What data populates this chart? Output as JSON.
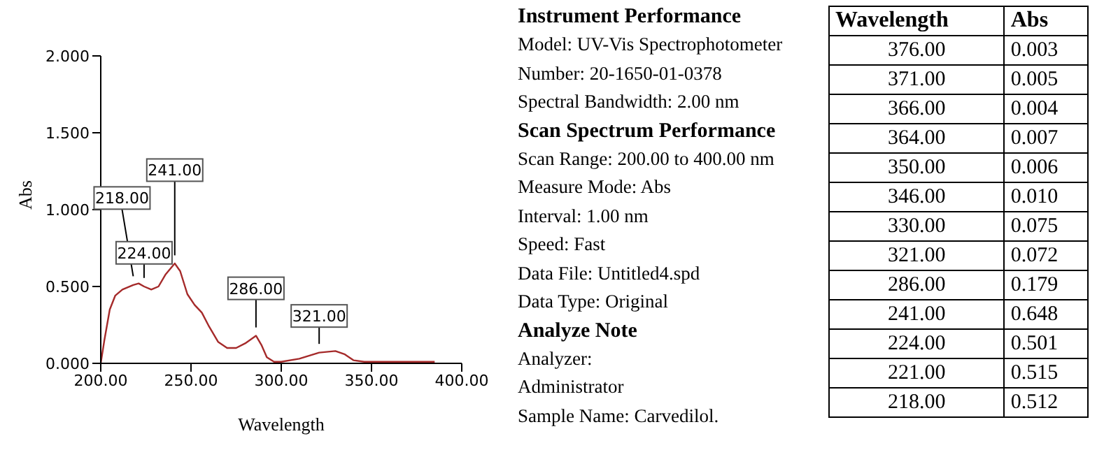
{
  "chart_data": [
    {
      "type": "line",
      "xlabel": "Wavelength",
      "ylabel": "Abs",
      "xlim": [
        200,
        400
      ],
      "ylim": [
        0,
        2
      ],
      "xticks": [
        {
          "value": 200,
          "label": "200.00"
        },
        {
          "value": 250,
          "label": "250.00"
        },
        {
          "value": 300,
          "label": "300.00"
        },
        {
          "value": 350,
          "label": "350.00"
        },
        {
          "value": 400,
          "label": "400.00"
        }
      ],
      "yticks": [
        {
          "value": 0,
          "label": "0.000"
        },
        {
          "value": 0.5,
          "label": "0.500"
        },
        {
          "value": 1,
          "label": "1.000"
        },
        {
          "value": 1.5,
          "label": "1.500"
        },
        {
          "value": 2,
          "label": "2.000"
        }
      ],
      "grid": false,
      "series": [
        {
          "type": "line",
          "color": "#a52a2a",
          "x": [
            200,
            202,
            205,
            208,
            212,
            218,
            221,
            224,
            228,
            232,
            236,
            241,
            244,
            248,
            252,
            256,
            260,
            265,
            270,
            275,
            280,
            286,
            289,
            292,
            296,
            300,
            310,
            321,
            330,
            335,
            340,
            346,
            350,
            364,
            366,
            371,
            376,
            385
          ],
          "values": [
            0,
            0.15,
            0.35,
            0.44,
            0.48,
            0.51,
            0.52,
            0.5,
            0.48,
            0.5,
            0.58,
            0.65,
            0.6,
            0.45,
            0.38,
            0.33,
            0.24,
            0.14,
            0.1,
            0.1,
            0.13,
            0.18,
            0.12,
            0.04,
            0.01,
            0.01,
            0.03,
            0.07,
            0.08,
            0.06,
            0.02,
            0.01,
            0.01,
            0.01,
            0.01,
            0.01,
            0.01,
            0.01
          ]
        }
      ],
      "annotations": [
        {
          "text": "218.00",
          "x": 218,
          "y": 0.512
        },
        {
          "text": "224.00",
          "x": 224,
          "y": 0.501
        },
        {
          "text": "241.00",
          "x": 241,
          "y": 0.648
        },
        {
          "text": "286.00",
          "x": 286,
          "y": 0.179
        },
        {
          "text": "321.00",
          "x": 321,
          "y": 0.072
        }
      ]
    },
    {
      "type": "other",
      "title": "Instrument Performance",
      "annotations": [
        "Model: UV-Vis Spectrophotometer",
        "Number: 20-1650-01-0378",
        "Spectral Bandwidth: 2.00 nm"
      ]
    },
    {
      "type": "other",
      "title": "Scan Spectrum Performance",
      "annotations": [
        "Scan Range: 200.00 to 400.00 nm",
        "Measure Mode: Abs",
        "Interval: 1.00 nm",
        "Speed: Fast",
        "Data File: Untitled4.spd",
        "Data Type: Original"
      ]
    },
    {
      "type": "other",
      "title": "Analyze Note",
      "annotations": [
        "Analyzer:",
        "Administrator",
        "Sample Name: Carvedilol."
      ]
    },
    {
      "type": "other",
      "xlabel": "Wavelength",
      "ylabel": "Abs",
      "value_labels": [
        "0.003",
        "0.005",
        "0.004",
        "0.007",
        "0.006",
        "0.010",
        "0.075",
        "0.072",
        "0.179",
        "0.648",
        "0.501",
        "0.515",
        "0.512"
      ],
      "categories": [
        "376.00",
        "371.00",
        "366.00",
        "364.00",
        "350.00",
        "346.00",
        "330.00",
        "321.00",
        "286.00",
        "241.00",
        "224.00",
        "221.00",
        "218.00"
      ],
      "values": [
        0.003,
        0.005,
        0.004,
        0.007,
        0.006,
        0.01,
        0.075,
        0.072,
        0.179,
        0.648,
        0.501,
        0.515,
        0.512
      ]
    }
  ]
}
